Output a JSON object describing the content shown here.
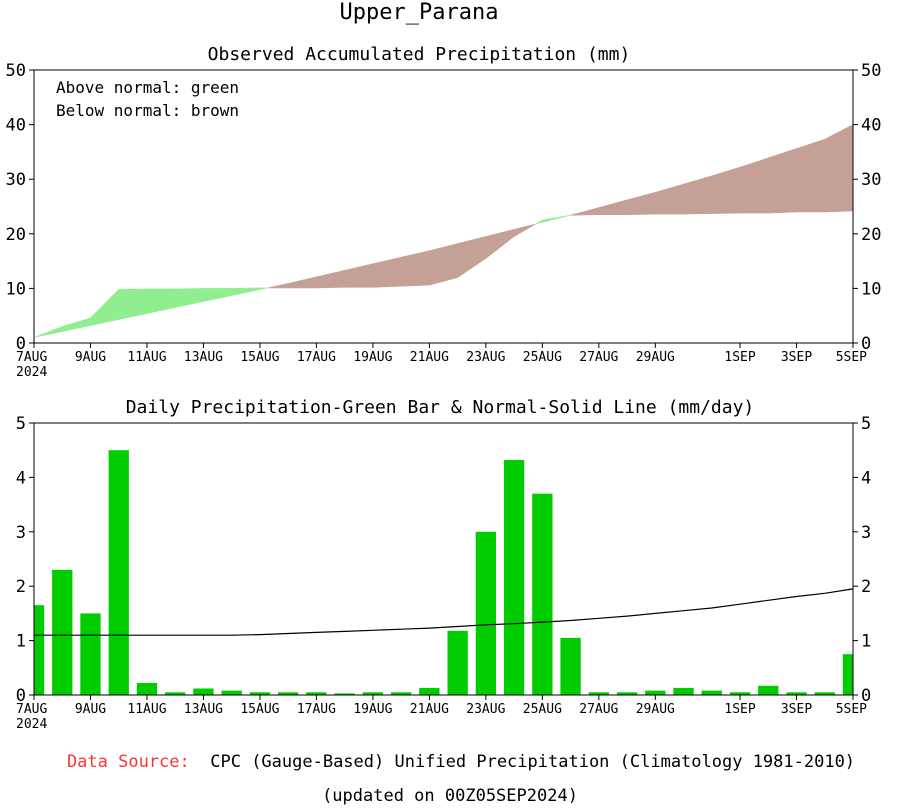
{
  "region": "Upper_Parana",
  "footer": {
    "source_label": "Data Source:",
    "source_text": "CPC (Gauge-Based) Unified Precipitation (Climatology 1981-2010)",
    "updated": "(updated on 00Z05SEP2024)"
  },
  "colors": {
    "above_normal": "#90ee90",
    "below_normal": "#c4a097",
    "bar": "#00cc00",
    "normal_line": "#000000",
    "source_label": "#ff3333"
  },
  "chart_data": [
    {
      "type": "area",
      "title": "Observed Accumulated Precipitation (mm)",
      "legend": [
        "Above normal: green",
        "Below normal: brown"
      ],
      "ylim": [
        0,
        50
      ],
      "yticks": [
        0,
        10,
        20,
        30,
        40,
        50
      ],
      "xlim": [
        0,
        29
      ],
      "xticks": [
        {
          "day": 0,
          "label": "7AUG"
        },
        {
          "day": 2,
          "label": "9AUG"
        },
        {
          "day": 4,
          "label": "11AUG"
        },
        {
          "day": 6,
          "label": "13AUG"
        },
        {
          "day": 8,
          "label": "15AUG"
        },
        {
          "day": 10,
          "label": "17AUG"
        },
        {
          "day": 12,
          "label": "19AUG"
        },
        {
          "day": 14,
          "label": "21AUG"
        },
        {
          "day": 16,
          "label": "23AUG"
        },
        {
          "day": 18,
          "label": "25AUG"
        },
        {
          "day": 20,
          "label": "27AUG"
        },
        {
          "day": 22,
          "label": "29AUG"
        },
        {
          "day": 25,
          "label": "1SEP"
        },
        {
          "day": 27,
          "label": "3SEP"
        },
        {
          "day": 29,
          "label": "5SEP"
        }
      ],
      "xyear": "2024",
      "days": [
        0,
        1,
        2,
        3,
        4,
        5,
        6,
        7,
        8,
        9,
        10,
        11,
        12,
        13,
        14,
        15,
        16,
        17,
        18,
        19,
        20,
        21,
        22,
        23,
        24,
        25,
        26,
        27,
        28,
        29
      ],
      "observed": [
        1.0,
        3.0,
        4.6,
        9.8,
        9.9,
        9.9,
        10.0,
        10.0,
        10.1,
        10.1,
        10.1,
        10.2,
        10.2,
        10.4,
        10.6,
        12.0,
        15.5,
        19.5,
        22.5,
        23.4,
        23.5,
        23.5,
        23.6,
        23.6,
        23.7,
        23.8,
        23.8,
        24.0,
        24.0,
        24.2
      ],
      "normal": [
        1.0,
        2.1,
        3.2,
        4.3,
        5.4,
        6.5,
        7.6,
        8.7,
        9.8,
        10.9,
        12.1,
        13.3,
        14.5,
        15.7,
        16.9,
        18.2,
        19.5,
        20.8,
        22.1,
        23.4,
        24.8,
        26.2,
        27.6,
        29.1,
        30.6,
        32.2,
        33.9,
        35.6,
        37.3,
        40.0
      ]
    },
    {
      "type": "bar",
      "title": "Daily Precipitation-Green Bar & Normal-Solid Line (mm/day)",
      "ylim": [
        0,
        5
      ],
      "yticks": [
        0,
        1,
        2,
        3,
        4,
        5
      ],
      "xlim": [
        0,
        29
      ],
      "xticks": [
        {
          "day": 0,
          "label": "7AUG"
        },
        {
          "day": 2,
          "label": "9AUG"
        },
        {
          "day": 4,
          "label": "11AUG"
        },
        {
          "day": 6,
          "label": "13AUG"
        },
        {
          "day": 8,
          "label": "15AUG"
        },
        {
          "day": 10,
          "label": "17AUG"
        },
        {
          "day": 12,
          "label": "19AUG"
        },
        {
          "day": 14,
          "label": "21AUG"
        },
        {
          "day": 16,
          "label": "23AUG"
        },
        {
          "day": 18,
          "label": "25AUG"
        },
        {
          "day": 20,
          "label": "27AUG"
        },
        {
          "day": 22,
          "label": "29AUG"
        },
        {
          "day": 25,
          "label": "1SEP"
        },
        {
          "day": 27,
          "label": "3SEP"
        },
        {
          "day": 29,
          "label": "5SEP"
        }
      ],
      "xyear": "2024",
      "bars": [
        1.65,
        2.3,
        1.5,
        4.5,
        0.22,
        0.05,
        0.12,
        0.08,
        0.05,
        0.05,
        0.05,
        0.03,
        0.05,
        0.05,
        0.13,
        1.18,
        3.0,
        4.32,
        3.7,
        1.05,
        0.05,
        0.05,
        0.08,
        0.13,
        0.08,
        0.05,
        0.17,
        0.05,
        0.05,
        0.75
      ],
      "normal": [
        1.1,
        1.1,
        1.1,
        1.1,
        1.1,
        1.1,
        1.1,
        1.1,
        1.11,
        1.13,
        1.15,
        1.17,
        1.19,
        1.21,
        1.23,
        1.26,
        1.29,
        1.31,
        1.34,
        1.37,
        1.41,
        1.45,
        1.5,
        1.55,
        1.6,
        1.67,
        1.74,
        1.81,
        1.87,
        1.95
      ]
    }
  ]
}
